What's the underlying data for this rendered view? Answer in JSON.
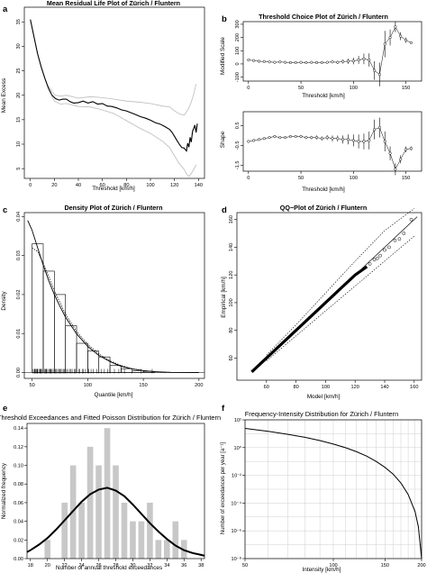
{
  "figure": {
    "panel_tags": [
      "a",
      "b",
      "c",
      "d",
      "e",
      "f"
    ]
  },
  "chart_data": [
    {
      "id": "a",
      "type": "line",
      "title": "Mean Residual Life Plot of Zürich / Fluntern",
      "xlabel": "Threshold [km/h]",
      "ylabel": "Mean Excess",
      "xlim": [
        -5,
        145
      ],
      "ylim": [
        3,
        38
      ],
      "xticks": [
        0,
        20,
        40,
        60,
        80,
        100,
        120,
        140
      ],
      "yticks": [
        5,
        10,
        15,
        20,
        25,
        30,
        35
      ],
      "series": [
        {
          "role": "estimate",
          "color": "#000000",
          "points": [
            [
              0,
              35.5
            ],
            [
              3,
              32
            ],
            [
              6,
              28.5
            ],
            [
              9,
              25.8
            ],
            [
              12,
              23.5
            ],
            [
              15,
              21.5
            ],
            [
              18,
              20
            ],
            [
              21,
              19.3
            ],
            [
              24,
              19
            ],
            [
              27,
              19.2
            ],
            [
              30,
              19.2
            ],
            [
              33,
              18.7
            ],
            [
              36,
              18.4
            ],
            [
              40,
              18.5
            ],
            [
              44,
              18.8
            ],
            [
              48,
              18.4
            ],
            [
              52,
              18.7
            ],
            [
              56,
              18.2
            ],
            [
              60,
              18.3
            ],
            [
              64,
              17.8
            ],
            [
              68,
              17.7
            ],
            [
              72,
              17.4
            ],
            [
              76,
              17
            ],
            [
              80,
              16.8
            ],
            [
              84,
              16.4
            ],
            [
              88,
              16
            ],
            [
              92,
              15.6
            ],
            [
              96,
              15.3
            ],
            [
              100,
              14.9
            ],
            [
              104,
              14.4
            ],
            [
              108,
              14.1
            ],
            [
              112,
              13.6
            ],
            [
              116,
              13
            ],
            [
              118,
              12.4
            ],
            [
              120,
              11.6
            ],
            [
              122,
              10.8
            ],
            [
              124,
              10
            ],
            [
              126,
              9.3
            ],
            [
              128,
              9.2
            ],
            [
              130,
              8.6
            ],
            [
              131,
              10.2
            ],
            [
              132,
              9.4
            ],
            [
              133,
              11.4
            ],
            [
              134,
              10.4
            ],
            [
              135,
              12.6
            ],
            [
              136,
              13.2
            ],
            [
              137,
              13.9
            ],
            [
              138,
              12.4
            ],
            [
              139,
              14.2
            ]
          ]
        },
        {
          "role": "upper confidence band",
          "color": "#bbbbbb",
          "points": [
            [
              15,
              21.9
            ],
            [
              20,
              20.1
            ],
            [
              25,
              19.8
            ],
            [
              30,
              20
            ],
            [
              40,
              19.4
            ],
            [
              50,
              19.7
            ],
            [
              60,
              19.5
            ],
            [
              70,
              19.2
            ],
            [
              80,
              18.8
            ],
            [
              90,
              18.6
            ],
            [
              100,
              18.3
            ],
            [
              110,
              17.8
            ],
            [
              116,
              17.6
            ],
            [
              120,
              16.8
            ],
            [
              124,
              16.2
            ],
            [
              128,
              15.9
            ],
            [
              130,
              16.6
            ],
            [
              132,
              17.4
            ],
            [
              134,
              18.6
            ],
            [
              136,
              20.2
            ],
            [
              138,
              22.3
            ]
          ]
        },
        {
          "role": "lower confidence band",
          "color": "#bbbbbb",
          "points": [
            [
              15,
              21.1
            ],
            [
              20,
              18.8
            ],
            [
              25,
              18.2
            ],
            [
              30,
              18.3
            ],
            [
              40,
              17.7
            ],
            [
              50,
              17.6
            ],
            [
              60,
              17
            ],
            [
              70,
              16.2
            ],
            [
              80,
              14.8
            ],
            [
              90,
              13.4
            ],
            [
              100,
              12.2
            ],
            [
              110,
              10.6
            ],
            [
              116,
              9.3
            ],
            [
              120,
              7.6
            ],
            [
              124,
              6
            ],
            [
              128,
              4.9
            ],
            [
              130,
              3.9
            ],
            [
              132,
              3.4
            ],
            [
              134,
              4
            ],
            [
              136,
              4.8
            ],
            [
              138,
              5.8
            ]
          ]
        }
      ]
    },
    {
      "id": "b-top",
      "type": "scatter",
      "title": "Threshold Choice Plot of Zürich / Fluntern",
      "xlabel": "Threshold [km/h]",
      "ylabel": "Modified Scale",
      "xlim": [
        -5,
        165
      ],
      "ylim": [
        -130,
        320
      ],
      "xticks": [
        0,
        50,
        100,
        150
      ],
      "yticks": [
        -100,
        0,
        100,
        200,
        300
      ],
      "x": [
        0,
        5,
        10,
        15,
        20,
        25,
        30,
        35,
        40,
        45,
        50,
        55,
        60,
        65,
        70,
        75,
        80,
        85,
        90,
        95,
        100,
        105,
        110,
        115,
        120,
        125,
        130,
        135,
        140,
        145,
        150,
        155
      ],
      "y": [
        30,
        25,
        20,
        18,
        15,
        12,
        15,
        12,
        10,
        10,
        12,
        10,
        12,
        10,
        10,
        12,
        15,
        12,
        18,
        20,
        22,
        30,
        38,
        30,
        -50,
        -80,
        150,
        200,
        280,
        210,
        180,
        160
      ],
      "error": [
        3,
        3,
        3,
        3,
        3,
        3,
        3,
        3,
        4,
        4,
        4,
        5,
        6,
        6,
        7,
        8,
        10,
        12,
        15,
        20,
        25,
        30,
        40,
        50,
        70,
        90,
        100,
        60,
        40,
        30,
        20,
        10
      ]
    },
    {
      "id": "b-bottom",
      "type": "scatter",
      "title": "",
      "xlabel": "Threshold [km/h]",
      "ylabel": "Shape",
      "xlim": [
        -5,
        165
      ],
      "ylim": [
        -1.8,
        1.2
      ],
      "xticks": [
        0,
        50,
        100,
        150
      ],
      "yticks": [
        -1.5,
        -0.5,
        0.5
      ],
      "x": [
        0,
        5,
        10,
        15,
        20,
        25,
        30,
        35,
        40,
        45,
        50,
        55,
        60,
        65,
        70,
        75,
        80,
        85,
        90,
        95,
        100,
        105,
        110,
        115,
        120,
        125,
        130,
        135,
        140,
        145,
        150,
        155
      ],
      "y": [
        -0.3,
        -0.25,
        -0.2,
        -0.15,
        -0.1,
        -0.05,
        -0.1,
        -0.1,
        -0.05,
        -0.05,
        -0.05,
        -0.1,
        -0.1,
        -0.1,
        -0.15,
        -0.1,
        -0.15,
        -0.15,
        -0.2,
        -0.2,
        -0.25,
        -0.3,
        -0.3,
        -0.25,
        0.3,
        0.4,
        -0.3,
        -0.9,
        -1.7,
        -1.2,
        -0.7,
        -0.65
      ],
      "error": [
        0.05,
        0.05,
        0.05,
        0.05,
        0.05,
        0.05,
        0.05,
        0.05,
        0.05,
        0.06,
        0.07,
        0.08,
        0.08,
        0.1,
        0.1,
        0.12,
        0.15,
        0.15,
        0.2,
        0.25,
        0.3,
        0.35,
        0.4,
        0.45,
        0.5,
        0.5,
        0.5,
        0.35,
        0.3,
        0.2,
        0.15,
        0.1
      ]
    },
    {
      "id": "c",
      "type": "bar",
      "title": "Density Plot of Zürich / Fluntern",
      "xlabel": "Quantile [km/h]",
      "ylabel": "Density",
      "xlim": [
        43,
        205
      ],
      "ylim": [
        -0.0015,
        0.041
      ],
      "xticks": [
        50,
        100,
        150,
        200
      ],
      "yticks": [
        0.0,
        0.01,
        0.02,
        0.03,
        0.04
      ],
      "bins": [
        [
          50,
          60,
          0.033
        ],
        [
          60,
          70,
          0.026
        ],
        [
          70,
          80,
          0.02
        ],
        [
          80,
          90,
          0.012
        ],
        [
          90,
          100,
          0.0075
        ],
        [
          100,
          110,
          0.0055
        ],
        [
          110,
          120,
          0.004
        ],
        [
          120,
          130,
          0.0018
        ],
        [
          130,
          140,
          0.001
        ],
        [
          140,
          150,
          0.0005
        ],
        [
          150,
          160,
          0.0003
        ]
      ],
      "fitted_density": [
        [
          46,
          0.039
        ],
        [
          50,
          0.0365
        ],
        [
          55,
          0.032
        ],
        [
          60,
          0.0275
        ],
        [
          65,
          0.0235
        ],
        [
          70,
          0.02
        ],
        [
          75,
          0.017
        ],
        [
          80,
          0.0142
        ],
        [
          90,
          0.0099
        ],
        [
          100,
          0.0067
        ],
        [
          110,
          0.0044
        ],
        [
          120,
          0.0028
        ],
        [
          130,
          0.0016
        ],
        [
          140,
          0.0009
        ],
        [
          150,
          0.0005
        ],
        [
          160,
          0.0002
        ],
        [
          175,
          5e-05
        ],
        [
          200,
          0
        ]
      ],
      "kernel_density": [
        [
          50,
          0.032
        ],
        [
          55,
          0.031
        ],
        [
          60,
          0.028
        ],
        [
          65,
          0.0245
        ],
        [
          70,
          0.021
        ],
        [
          75,
          0.018
        ],
        [
          80,
          0.015
        ],
        [
          90,
          0.0105
        ],
        [
          100,
          0.0072
        ],
        [
          110,
          0.0048
        ],
        [
          120,
          0.003
        ],
        [
          130,
          0.0018
        ],
        [
          140,
          0.001
        ],
        [
          150,
          0.0005
        ],
        [
          160,
          0.0002
        ],
        [
          170,
          0
        ]
      ],
      "rug": [
        51,
        52,
        52.5,
        53,
        54,
        54.5,
        55,
        56,
        57,
        57.5,
        58,
        59,
        60,
        61,
        62,
        62.5,
        63,
        64,
        65,
        66,
        66.5,
        67,
        68,
        69,
        70,
        71,
        72,
        73,
        74,
        75,
        76,
        77,
        78,
        79,
        80,
        81,
        82,
        84,
        85,
        86,
        88,
        89,
        90,
        92,
        93,
        95,
        96,
        98,
        100,
        101,
        103,
        105,
        108,
        110,
        112,
        115,
        118,
        120,
        124,
        128,
        133,
        140,
        148,
        158
      ]
    },
    {
      "id": "d",
      "type": "scatter",
      "title": "QQ−Plot of Zürich / Fluntern",
      "xlabel": "Model [km/h]",
      "ylabel": "Empirical [km/h]",
      "xlim": [
        40,
        165
      ],
      "ylim": [
        44,
        165
      ],
      "xticks": [
        60,
        80,
        100,
        120,
        140,
        160
      ],
      "yticks": [
        60,
        80,
        100,
        120,
        140,
        160
      ],
      "x": [
        130,
        133,
        135,
        137,
        140,
        143,
        147,
        150,
        153,
        158
      ],
      "y": [
        128,
        131,
        132,
        134,
        138,
        140,
        145,
        146,
        150,
        160
      ],
      "reference_line": [
        [
          50,
          50
        ],
        [
          162,
          162
        ]
      ],
      "band_upper": [
        [
          60,
          62
        ],
        [
          80,
          84
        ],
        [
          100,
          107
        ],
        [
          120,
          130
        ],
        [
          140,
          152
        ],
        [
          160,
          168
        ]
      ],
      "band_lower": [
        [
          60,
          58
        ],
        [
          80,
          76
        ],
        [
          100,
          94
        ],
        [
          120,
          112
        ],
        [
          140,
          130
        ],
        [
          160,
          148
        ]
      ]
    },
    {
      "id": "e",
      "type": "bar",
      "title": "Threshold Exceedances and Fitted Poisson Distribution for Zürich / Fluntern",
      "xlabel": "Number of annual threshold exceedances",
      "ylabel": "Normalized frequency",
      "xlim": [
        17.6,
        38.4
      ],
      "ylim": [
        0,
        0.145
      ],
      "xticks": [
        18,
        20,
        22,
        24,
        26,
        28,
        30,
        32,
        34,
        36,
        38
      ],
      "yticks": [
        0.0,
        0.02,
        0.04,
        0.06,
        0.08,
        0.1,
        0.12,
        0.14
      ],
      "x": [
        20,
        22,
        23,
        24,
        25,
        26,
        27,
        28,
        29,
        30,
        31,
        32,
        33,
        34,
        35,
        36
      ],
      "values": [
        0.02,
        0.06,
        0.1,
        0.06,
        0.12,
        0.1,
        0.14,
        0.1,
        0.06,
        0.04,
        0.04,
        0.06,
        0.02,
        0.02,
        0.04,
        0.02
      ],
      "poisson_fit": [
        [
          17.6,
          0.007
        ],
        [
          18,
          0.009
        ],
        [
          19,
          0.015
        ],
        [
          20,
          0.022
        ],
        [
          21,
          0.031
        ],
        [
          22,
          0.041
        ],
        [
          23,
          0.051
        ],
        [
          24,
          0.061
        ],
        [
          25,
          0.069
        ],
        [
          26,
          0.074
        ],
        [
          27,
          0.076
        ],
        [
          28,
          0.073
        ],
        [
          29,
          0.067
        ],
        [
          30,
          0.058
        ],
        [
          31,
          0.048
        ],
        [
          32,
          0.038
        ],
        [
          33,
          0.029
        ],
        [
          34,
          0.021
        ],
        [
          35,
          0.014
        ],
        [
          36,
          0.009
        ],
        [
          37,
          0.006
        ],
        [
          38,
          0.004
        ],
        [
          38.4,
          0.003
        ]
      ]
    },
    {
      "id": "f",
      "type": "line",
      "title": "Frequency-Intensity Distribution for Zürich / Fluntern",
      "xlabel": "Intensity [km/h]",
      "ylabel": "Number of exceedances per year [a⁻¹]",
      "x_scale": "log",
      "y_scale": "log",
      "xlim": [
        50,
        200
      ],
      "ylim_log10": [
        -8,
        2
      ],
      "xticks": [
        50,
        100,
        150,
        200
      ],
      "ytick_labels": [
        "10⁻⁸",
        "10⁻⁶",
        "10⁻⁴",
        "10⁻²",
        "10⁰",
        "10²"
      ],
      "grid": true,
      "points": [
        [
          50,
          24
        ],
        [
          60,
          15
        ],
        [
          70,
          9
        ],
        [
          80,
          5.5
        ],
        [
          90,
          3.2
        ],
        [
          100,
          1.8
        ],
        [
          110,
          0.98
        ],
        [
          120,
          0.5
        ],
        [
          130,
          0.24
        ],
        [
          140,
          0.1
        ],
        [
          150,
          0.038
        ],
        [
          160,
          0.012
        ],
        [
          170,
          0.0028
        ],
        [
          180,
          0.00042
        ],
        [
          190,
          2.5e-05
        ],
        [
          195,
          2e-06
        ],
        [
          200,
          1e-08
        ]
      ]
    }
  ]
}
